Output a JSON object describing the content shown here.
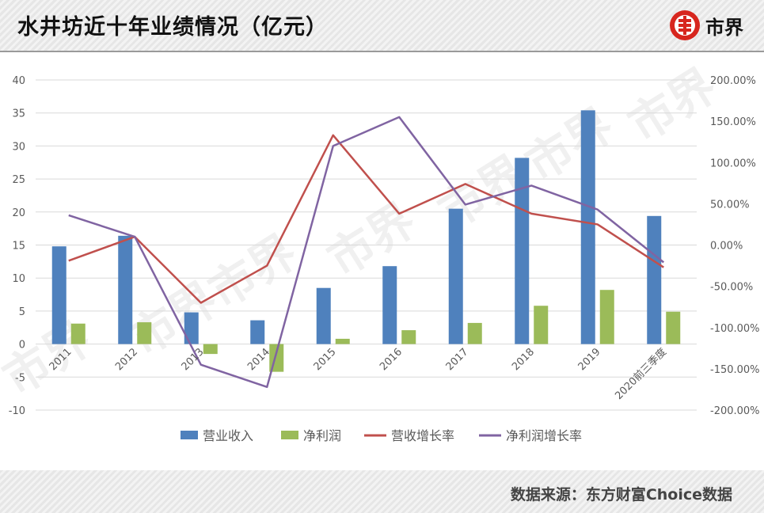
{
  "header": {
    "title": "水井坊近十年业绩情况（亿元）",
    "brand": "市界"
  },
  "watermark": "市界",
  "footer": {
    "source": "数据来源：东方财富Choice数据"
  },
  "colors": {
    "revenue": "#4f81bd",
    "profit": "#9bbb59",
    "revenue_growth": "#c0504d",
    "profit_growth": "#8064a2"
  },
  "chart_data": {
    "type": "bar",
    "title": "水井坊近十年业绩情况（亿元）",
    "categories": [
      "2011",
      "2012",
      "2013",
      "2014",
      "2015",
      "2016",
      "2017",
      "2018",
      "2019",
      "2020前三季度"
    ],
    "ylim": [
      -10,
      40
    ],
    "yticks": [
      "40",
      "35",
      "30",
      "25",
      "20",
      "15",
      "10",
      "5",
      "0",
      "-5",
      "-10"
    ],
    "y2lim": [
      -2,
      2
    ],
    "y2ticks": [
      "200.00%",
      "150.00%",
      "100.00%",
      "50.00%",
      "0.00%",
      "-50.00%",
      "-100.00%",
      "-150.00%",
      "-200.00%"
    ],
    "grid": true,
    "legend": "bottom",
    "series": [
      {
        "name": "营业收入",
        "type": "bar",
        "axis": "left",
        "values": [
          14.8,
          16.4,
          4.8,
          3.6,
          8.5,
          11.8,
          20.5,
          28.2,
          35.4,
          19.4
        ]
      },
      {
        "name": "净利润",
        "type": "bar",
        "axis": "left",
        "values": [
          3.1,
          3.3,
          -1.5,
          -4.2,
          0.8,
          2.1,
          3.2,
          5.8,
          8.2,
          4.9
        ]
      },
      {
        "name": "营收增长率",
        "type": "line",
        "axis": "right",
        "values": [
          -0.19,
          0.1,
          -0.7,
          -0.25,
          1.33,
          0.38,
          0.74,
          0.38,
          0.25,
          -0.27
        ]
      },
      {
        "name": "净利润增长率",
        "type": "line",
        "axis": "right",
        "values": [
          0.36,
          0.1,
          -1.45,
          -1.72,
          1.2,
          1.55,
          0.49,
          0.72,
          0.43,
          -0.21
        ]
      }
    ]
  }
}
